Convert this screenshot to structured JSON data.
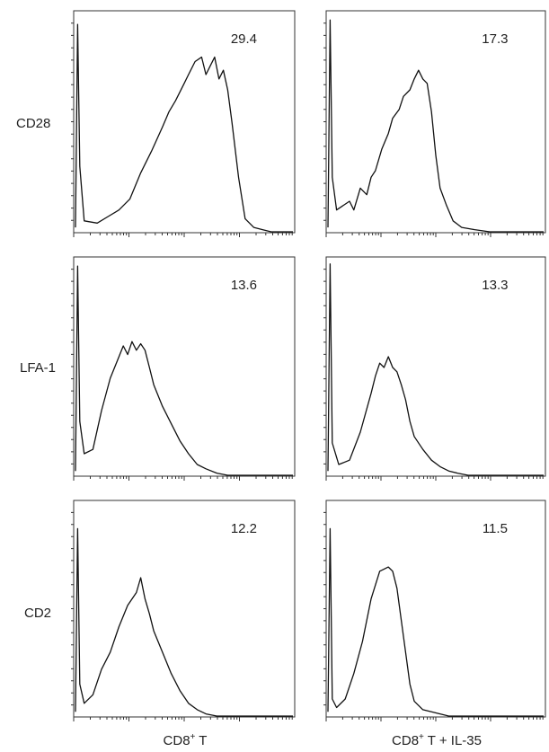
{
  "figure": {
    "row_labels": [
      "CD28",
      "LFA-1",
      "CD2"
    ],
    "column_labels": {
      "left_prefix": "CD8",
      "left_sup": "+",
      "left_suffix": " T",
      "right_prefix": "CD8",
      "right_sup": "+",
      "right_suffix": " T + IL-35"
    }
  },
  "chart_data": [
    {
      "type": "area",
      "marker": "CD28",
      "condition": "CD8+ T",
      "value_label": "29.4",
      "x": [
        0.0,
        0.01,
        0.02,
        0.04,
        0.1,
        0.15,
        0.2,
        0.25,
        0.3,
        0.35,
        0.4,
        0.43,
        0.46,
        0.5,
        0.52,
        0.55,
        0.58,
        0.6,
        0.62,
        0.64,
        0.66,
        0.68,
        0.7,
        0.72,
        0.75,
        0.78,
        0.82,
        0.86,
        0.9,
        1.0
      ],
      "y": [
        0.02,
        0.95,
        0.3,
        0.05,
        0.04,
        0.07,
        0.1,
        0.15,
        0.27,
        0.37,
        0.48,
        0.55,
        0.6,
        0.68,
        0.72,
        0.78,
        0.8,
        0.72,
        0.76,
        0.8,
        0.7,
        0.74,
        0.65,
        0.5,
        0.25,
        0.06,
        0.02,
        0.01,
        0.0,
        0.0
      ]
    },
    {
      "type": "area",
      "marker": "CD28",
      "condition": "CD8+ T + IL-35",
      "value_label": "17.3",
      "x": [
        0.0,
        0.01,
        0.02,
        0.04,
        0.1,
        0.12,
        0.15,
        0.18,
        0.2,
        0.22,
        0.25,
        0.28,
        0.3,
        0.33,
        0.35,
        0.38,
        0.4,
        0.42,
        0.44,
        0.46,
        0.48,
        0.5,
        0.52,
        0.55,
        0.58,
        0.62,
        0.68,
        0.75,
        0.85,
        1.0
      ],
      "y": [
        0.02,
        0.97,
        0.25,
        0.1,
        0.14,
        0.1,
        0.2,
        0.17,
        0.25,
        0.28,
        0.38,
        0.45,
        0.52,
        0.56,
        0.62,
        0.65,
        0.7,
        0.74,
        0.7,
        0.68,
        0.55,
        0.35,
        0.2,
        0.12,
        0.05,
        0.02,
        0.01,
        0.0,
        0.0,
        0.0
      ]
    },
    {
      "type": "area",
      "marker": "LFA-1",
      "condition": "CD8+ T",
      "value_label": "13.6",
      "x": [
        0.0,
        0.01,
        0.02,
        0.04,
        0.08,
        0.12,
        0.16,
        0.2,
        0.22,
        0.24,
        0.26,
        0.28,
        0.3,
        0.32,
        0.34,
        0.36,
        0.4,
        0.44,
        0.48,
        0.52,
        0.56,
        0.6,
        0.65,
        0.7,
        0.8,
        1.0
      ],
      "y": [
        0.02,
        0.97,
        0.25,
        0.1,
        0.12,
        0.3,
        0.45,
        0.55,
        0.6,
        0.56,
        0.62,
        0.58,
        0.61,
        0.58,
        0.5,
        0.42,
        0.32,
        0.24,
        0.16,
        0.1,
        0.05,
        0.03,
        0.01,
        0.0,
        0.0,
        0.0
      ]
    },
    {
      "type": "area",
      "marker": "LFA-1",
      "condition": "CD8+ T + IL-35",
      "value_label": "13.3",
      "x": [
        0.0,
        0.01,
        0.02,
        0.05,
        0.1,
        0.15,
        0.2,
        0.22,
        0.24,
        0.26,
        0.28,
        0.3,
        0.32,
        0.34,
        0.36,
        0.38,
        0.4,
        0.44,
        0.48,
        0.52,
        0.56,
        0.6,
        0.65,
        0.7,
        0.8,
        1.0
      ],
      "y": [
        0.02,
        0.98,
        0.15,
        0.05,
        0.07,
        0.2,
        0.38,
        0.46,
        0.52,
        0.5,
        0.55,
        0.5,
        0.48,
        0.42,
        0.35,
        0.25,
        0.18,
        0.12,
        0.07,
        0.04,
        0.02,
        0.01,
        0.0,
        0.0,
        0.0,
        0.0
      ]
    },
    {
      "type": "area",
      "marker": "CD2",
      "condition": "CD8+ T",
      "value_label": "12.2",
      "x": [
        0.0,
        0.01,
        0.02,
        0.04,
        0.08,
        0.12,
        0.16,
        0.2,
        0.24,
        0.28,
        0.3,
        0.32,
        0.34,
        0.36,
        0.4,
        0.44,
        0.48,
        0.52,
        0.56,
        0.6,
        0.65,
        0.7,
        0.8,
        1.0
      ],
      "y": [
        0.02,
        0.88,
        0.15,
        0.06,
        0.1,
        0.22,
        0.3,
        0.42,
        0.52,
        0.58,
        0.65,
        0.55,
        0.48,
        0.4,
        0.3,
        0.2,
        0.12,
        0.06,
        0.03,
        0.01,
        0.0,
        0.0,
        0.0,
        0.0
      ]
    },
    {
      "type": "area",
      "marker": "CD2",
      "condition": "CD8+ T + IL-35",
      "value_label": "11.5",
      "x": [
        0.0,
        0.01,
        0.02,
        0.04,
        0.08,
        0.12,
        0.16,
        0.2,
        0.24,
        0.28,
        0.3,
        0.32,
        0.34,
        0.36,
        0.38,
        0.4,
        0.44,
        0.48,
        0.52,
        0.56,
        0.6,
        0.65,
        0.7,
        0.8,
        1.0
      ],
      "y": [
        0.02,
        0.88,
        0.08,
        0.04,
        0.08,
        0.2,
        0.35,
        0.55,
        0.68,
        0.7,
        0.68,
        0.6,
        0.45,
        0.3,
        0.15,
        0.07,
        0.03,
        0.02,
        0.01,
        0.0,
        0.0,
        0.0,
        0.0,
        0.0,
        0.0
      ]
    }
  ]
}
